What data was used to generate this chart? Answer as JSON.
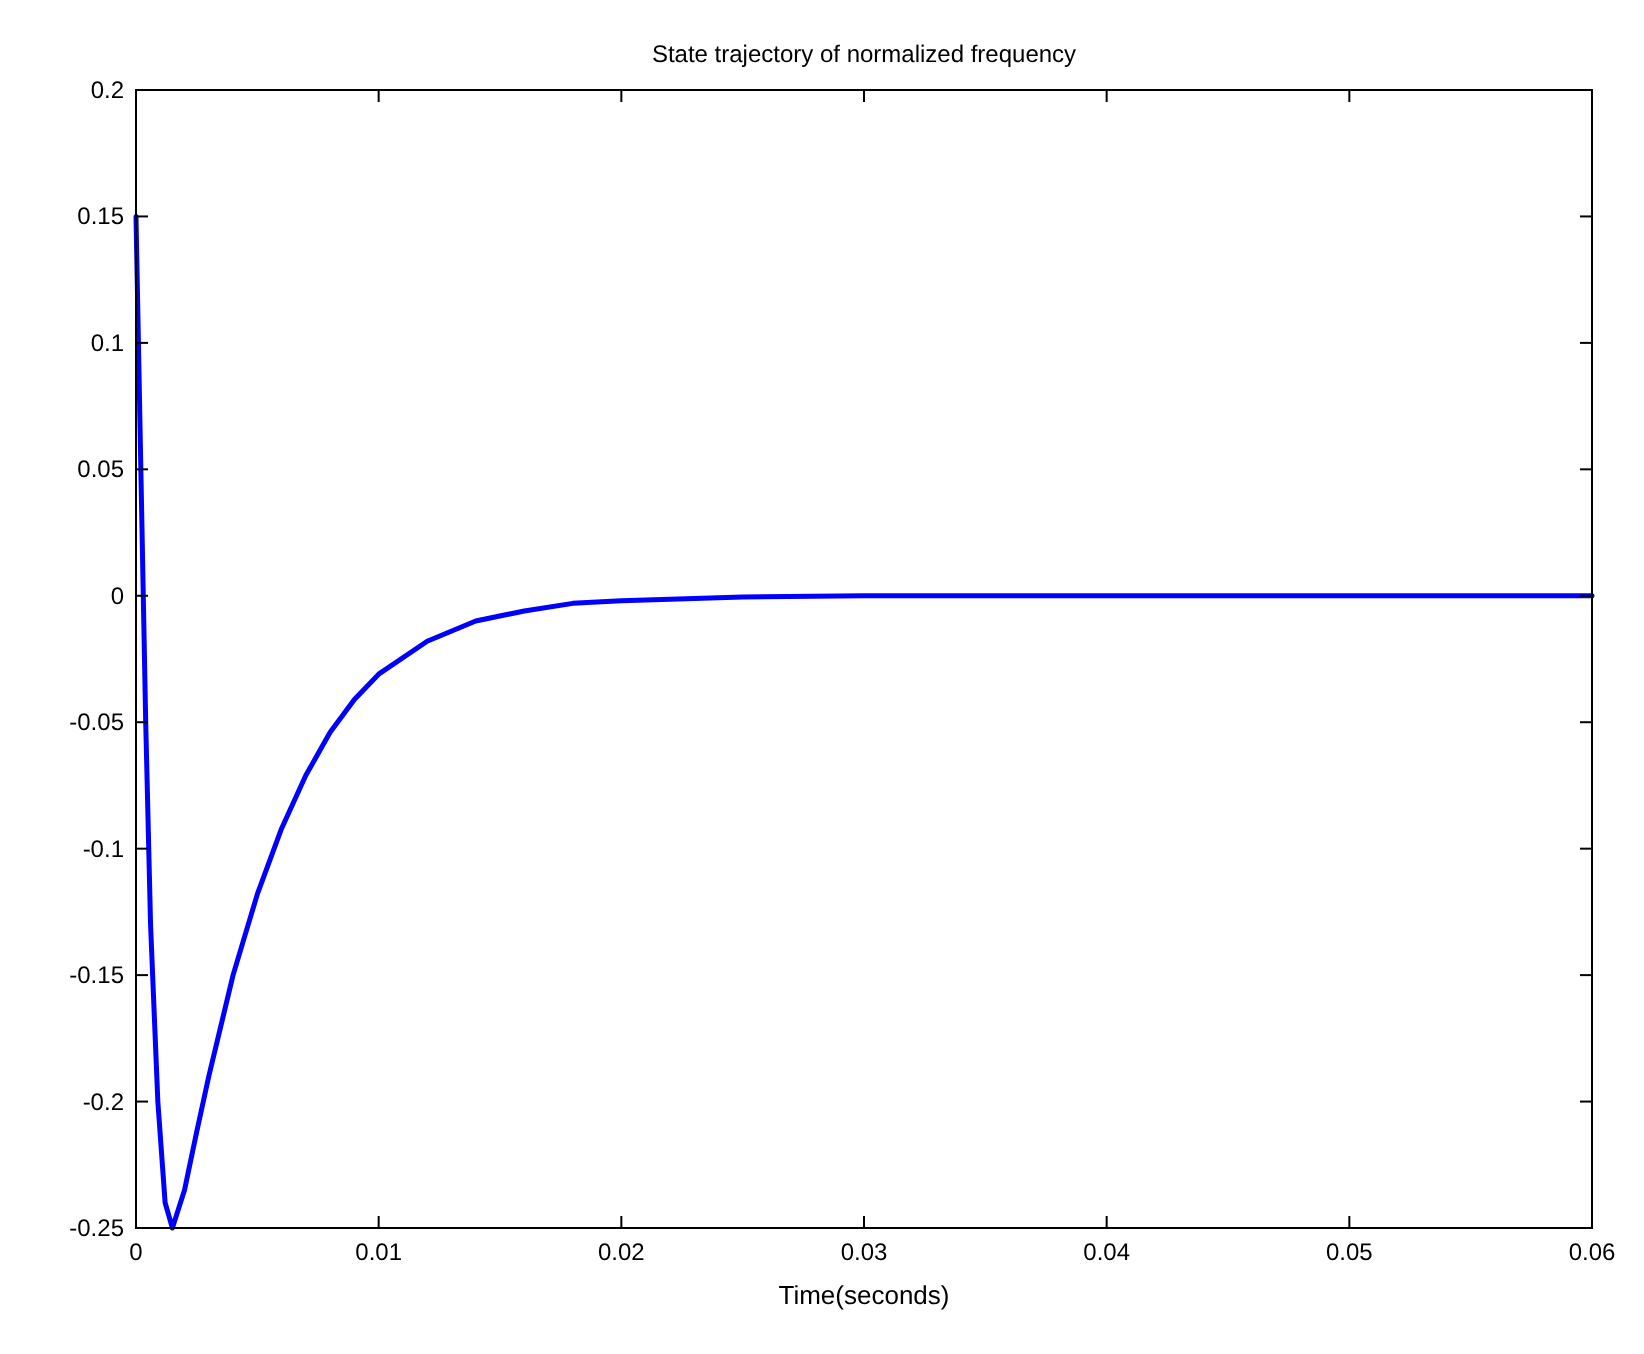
{
  "chart_data": {
    "type": "line",
    "title": "State trajectory of normalized frequency",
    "xlabel": "Time(seconds)",
    "x": [
      0,
      0.0001,
      0.0002,
      0.0004,
      0.0006,
      0.0009,
      0.0012,
      0.0015,
      0.002,
      0.0025,
      0.003,
      0.004,
      0.005,
      0.006,
      0.007,
      0.008,
      0.009,
      0.01,
      0.012,
      0.014,
      0.016,
      0.018,
      0.02,
      0.025,
      0.03,
      0.04,
      0.05,
      0.06
    ],
    "series": [
      {
        "color": "#0000ff",
        "values": [
          0.15,
          0.1,
          0.05,
          -0.05,
          -0.13,
          -0.2,
          -0.24,
          -0.25,
          -0.235,
          -0.212,
          -0.19,
          -0.15,
          -0.118,
          -0.092,
          -0.071,
          -0.054,
          -0.041,
          -0.031,
          -0.018,
          -0.01,
          -0.006,
          -0.003,
          -0.002,
          -0.0005,
          0,
          0,
          0,
          0
        ]
      }
    ],
    "xlim": [
      0,
      0.06
    ],
    "xticks": [
      0,
      0.01,
      0.02,
      0.03,
      0.04,
      0.05,
      0.06
    ],
    "ylim": [
      -0.25,
      0.2
    ],
    "yticks": [
      -0.25,
      -0.2,
      -0.15,
      -0.1,
      -0.05,
      0,
      0.05,
      0.1,
      0.15,
      0.2
    ],
    "grid": false,
    "marker": "none",
    "line_style": "solid"
  }
}
